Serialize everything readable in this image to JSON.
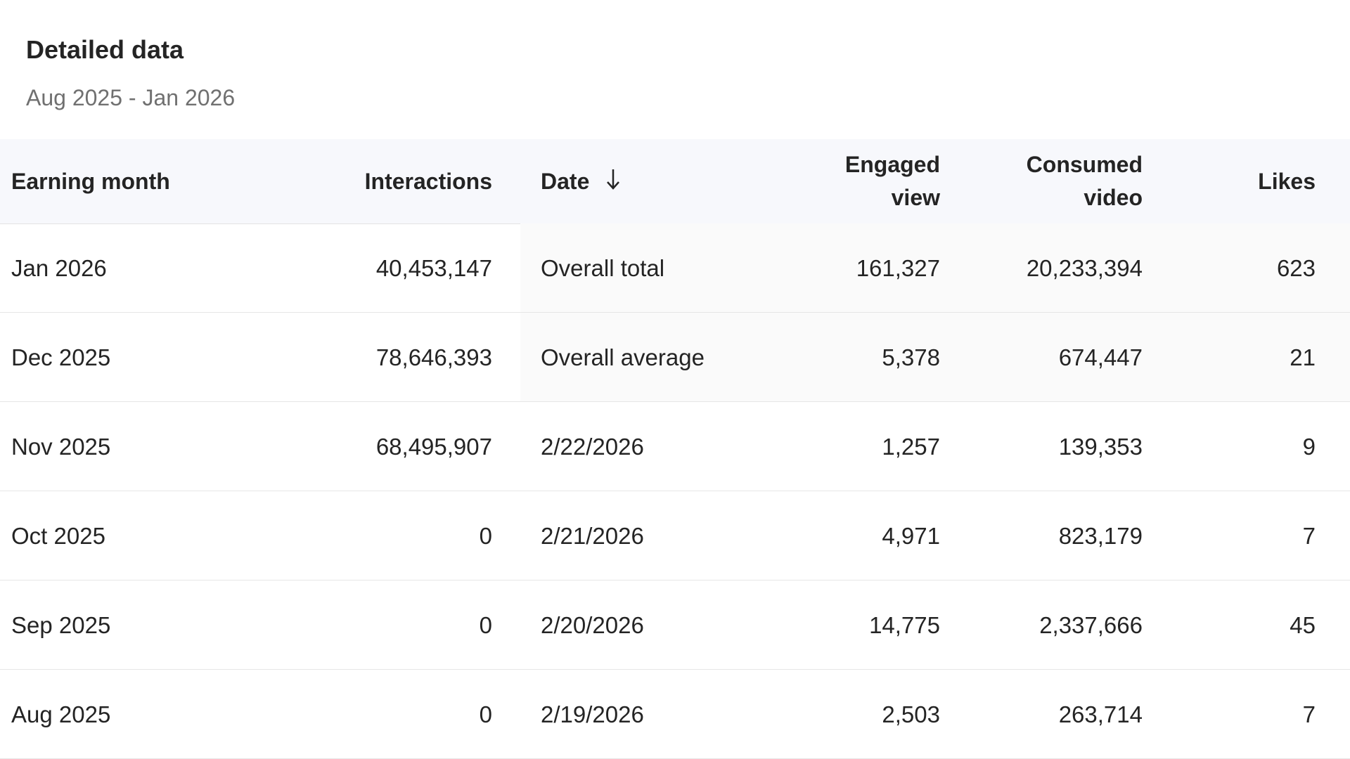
{
  "header": {
    "title": "Detailed data",
    "subtitle": "Aug 2025 - Jan 2026"
  },
  "table": {
    "columns": [
      "Earning month",
      "Interactions",
      "Date",
      "Engaged view",
      "Consumed video",
      "Likes"
    ],
    "rows": [
      [
        "Jan 2026",
        "40,453,147",
        "Overall total",
        "161,327",
        "20,233,394",
        "623"
      ],
      [
        "Dec 2025",
        "78,646,393",
        "Overall average",
        "5,378",
        "674,447",
        "21"
      ],
      [
        "Nov 2025",
        "68,495,907",
        "2/22/2026",
        "1,257",
        "139,353",
        "9"
      ],
      [
        "Oct 2025",
        "0",
        "2/21/2026",
        "4,971",
        "823,179",
        "7"
      ],
      [
        "Sep 2025",
        "0",
        "2/20/2026",
        "14,775",
        "2,337,666",
        "45"
      ],
      [
        "Aug 2025",
        "0",
        "2/19/2026",
        "2,503",
        "263,714",
        "7"
      ]
    ]
  }
}
